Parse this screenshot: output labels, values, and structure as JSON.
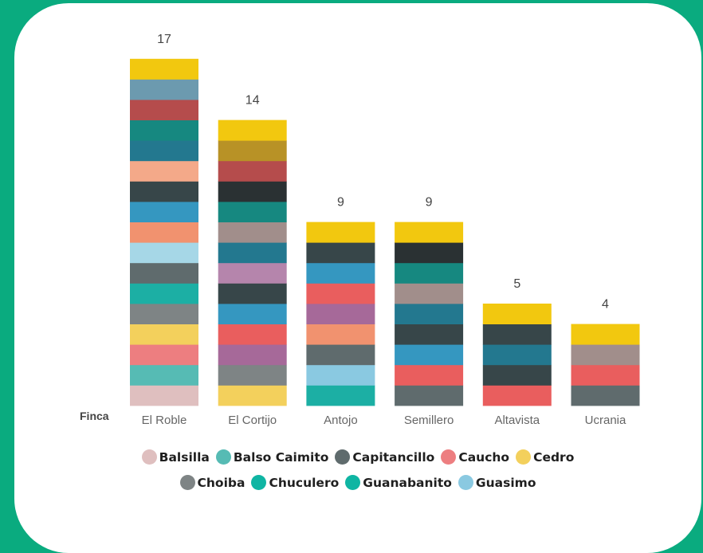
{
  "colors": {
    "background": "#0aab7f",
    "card": "#ffffff"
  },
  "chart_data": {
    "type": "bar",
    "stacked": true,
    "xlabel": "Finca",
    "ylabel": "",
    "categories": [
      "El Roble",
      "El Cortijo",
      "Antojo",
      "Semillero",
      "Altavista",
      "Ucrania"
    ],
    "totals": [
      17,
      14,
      9,
      9,
      5,
      4
    ],
    "segment_colors_bottom_to_top": [
      [
        "#dfbfbf",
        "#56bbb4",
        "#ed7e80",
        "#f3d05c",
        "#7e8485",
        "#1cafa4",
        "#5f6b6d",
        "#a6d7e7",
        "#f1926f",
        "#3597c0",
        "#374649",
        "#f4a989",
        "#23788f",
        "#168880",
        "#b54c4c",
        "#6c9aaf",
        "#f2c80f"
      ],
      [
        "#f3d05c",
        "#7e8485",
        "#a66999",
        "#e95e5e",
        "#3597c0",
        "#374649",
        "#b585ac",
        "#23788f",
        "#a18e8b",
        "#168880",
        "#2a3133",
        "#b54c4c",
        "#b89226",
        "#f2c80f"
      ],
      [
        "#1cafa4",
        "#8ac9e1",
        "#5f6b6d",
        "#f1926f",
        "#a66999",
        "#e95e5e",
        "#3597c0",
        "#374649",
        "#f2c80f"
      ],
      [
        "#5f6b6d",
        "#e95e5e",
        "#3597c0",
        "#374649",
        "#23788f",
        "#a18e8b",
        "#168880",
        "#2a3133",
        "#f2c80f"
      ],
      [
        "#e95e5e",
        "#374649",
        "#23788f",
        "#374649",
        "#f2c80f"
      ],
      [
        "#5f6b6d",
        "#e95e5e",
        "#a18e8b",
        "#f2c80f"
      ]
    ],
    "legend": [
      {
        "name": "Balsilla",
        "color": "#dfbfbf"
      },
      {
        "name": "Balso Caimito",
        "color": "#56bbb4"
      },
      {
        "name": "Capitancillo",
        "color": "#5f6b6d"
      },
      {
        "name": "Caucho",
        "color": "#ed7e80"
      },
      {
        "name": "Cedro",
        "color": "#f3d05c"
      },
      {
        "name": "Choiba",
        "color": "#7e8485"
      },
      {
        "name": "Chuculero",
        "color": "#0fb5a3"
      },
      {
        "name": "Guanabanito",
        "color": "#0fb5a3"
      },
      {
        "name": "Guasimo",
        "color": "#8ac9e1"
      }
    ],
    "legend_placement": "bottom-center",
    "grid": false
  }
}
